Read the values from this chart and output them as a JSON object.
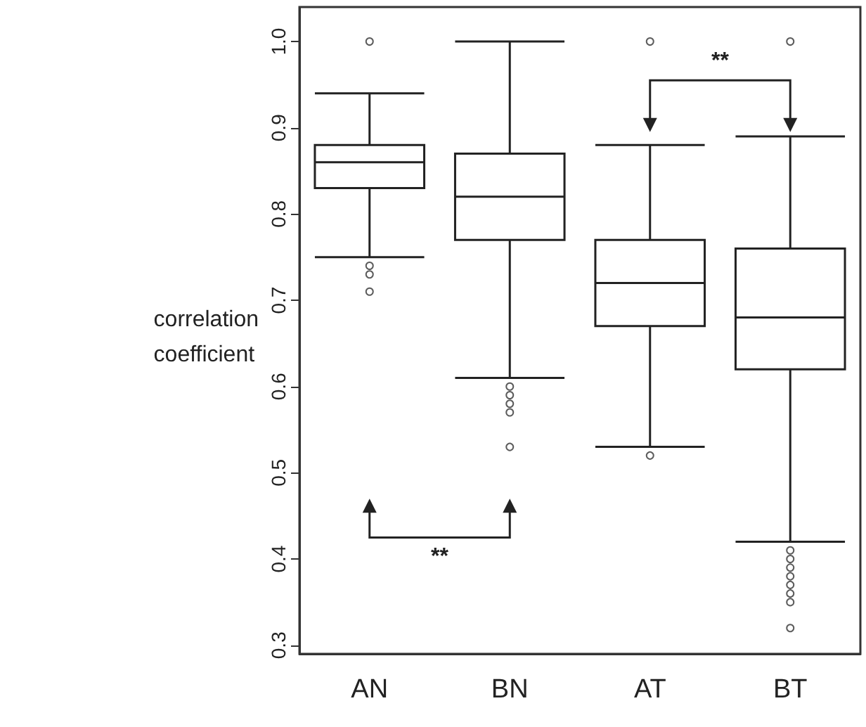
{
  "chart_data": {
    "type": "box",
    "ylabel": "correlation\ncoefficient",
    "categories": [
      "AN",
      "BN",
      "AT",
      "BT"
    ],
    "boxes": [
      {
        "low": 0.75,
        "q1": 0.83,
        "median": 0.86,
        "q3": 0.88,
        "high": 0.94,
        "outliers": [
          1.0,
          0.74,
          0.73,
          0.71
        ]
      },
      {
        "low": 0.61,
        "q1": 0.77,
        "median": 0.82,
        "q3": 0.87,
        "high": 1.0,
        "outliers": [
          0.6,
          0.59,
          0.58,
          0.57,
          0.53
        ]
      },
      {
        "low": 0.53,
        "q1": 0.67,
        "median": 0.72,
        "q3": 0.77,
        "high": 0.88,
        "outliers": [
          1.0,
          0.52
        ]
      },
      {
        "low": 0.42,
        "q1": 0.62,
        "median": 0.68,
        "q3": 0.76,
        "high": 0.89,
        "outliers": [
          1.0,
          0.41,
          0.4,
          0.39,
          0.38,
          0.37,
          0.36,
          0.35,
          0.32
        ]
      }
    ],
    "ylim": [
      0.29,
      1.04
    ],
    "yticks": [
      0.3,
      0.4,
      0.5,
      0.6,
      0.7,
      0.8,
      0.9,
      {
        "value": 1.0,
        "label": "1.0"
      }
    ],
    "grid": false,
    "annotations": [
      "**",
      "**"
    ]
  }
}
